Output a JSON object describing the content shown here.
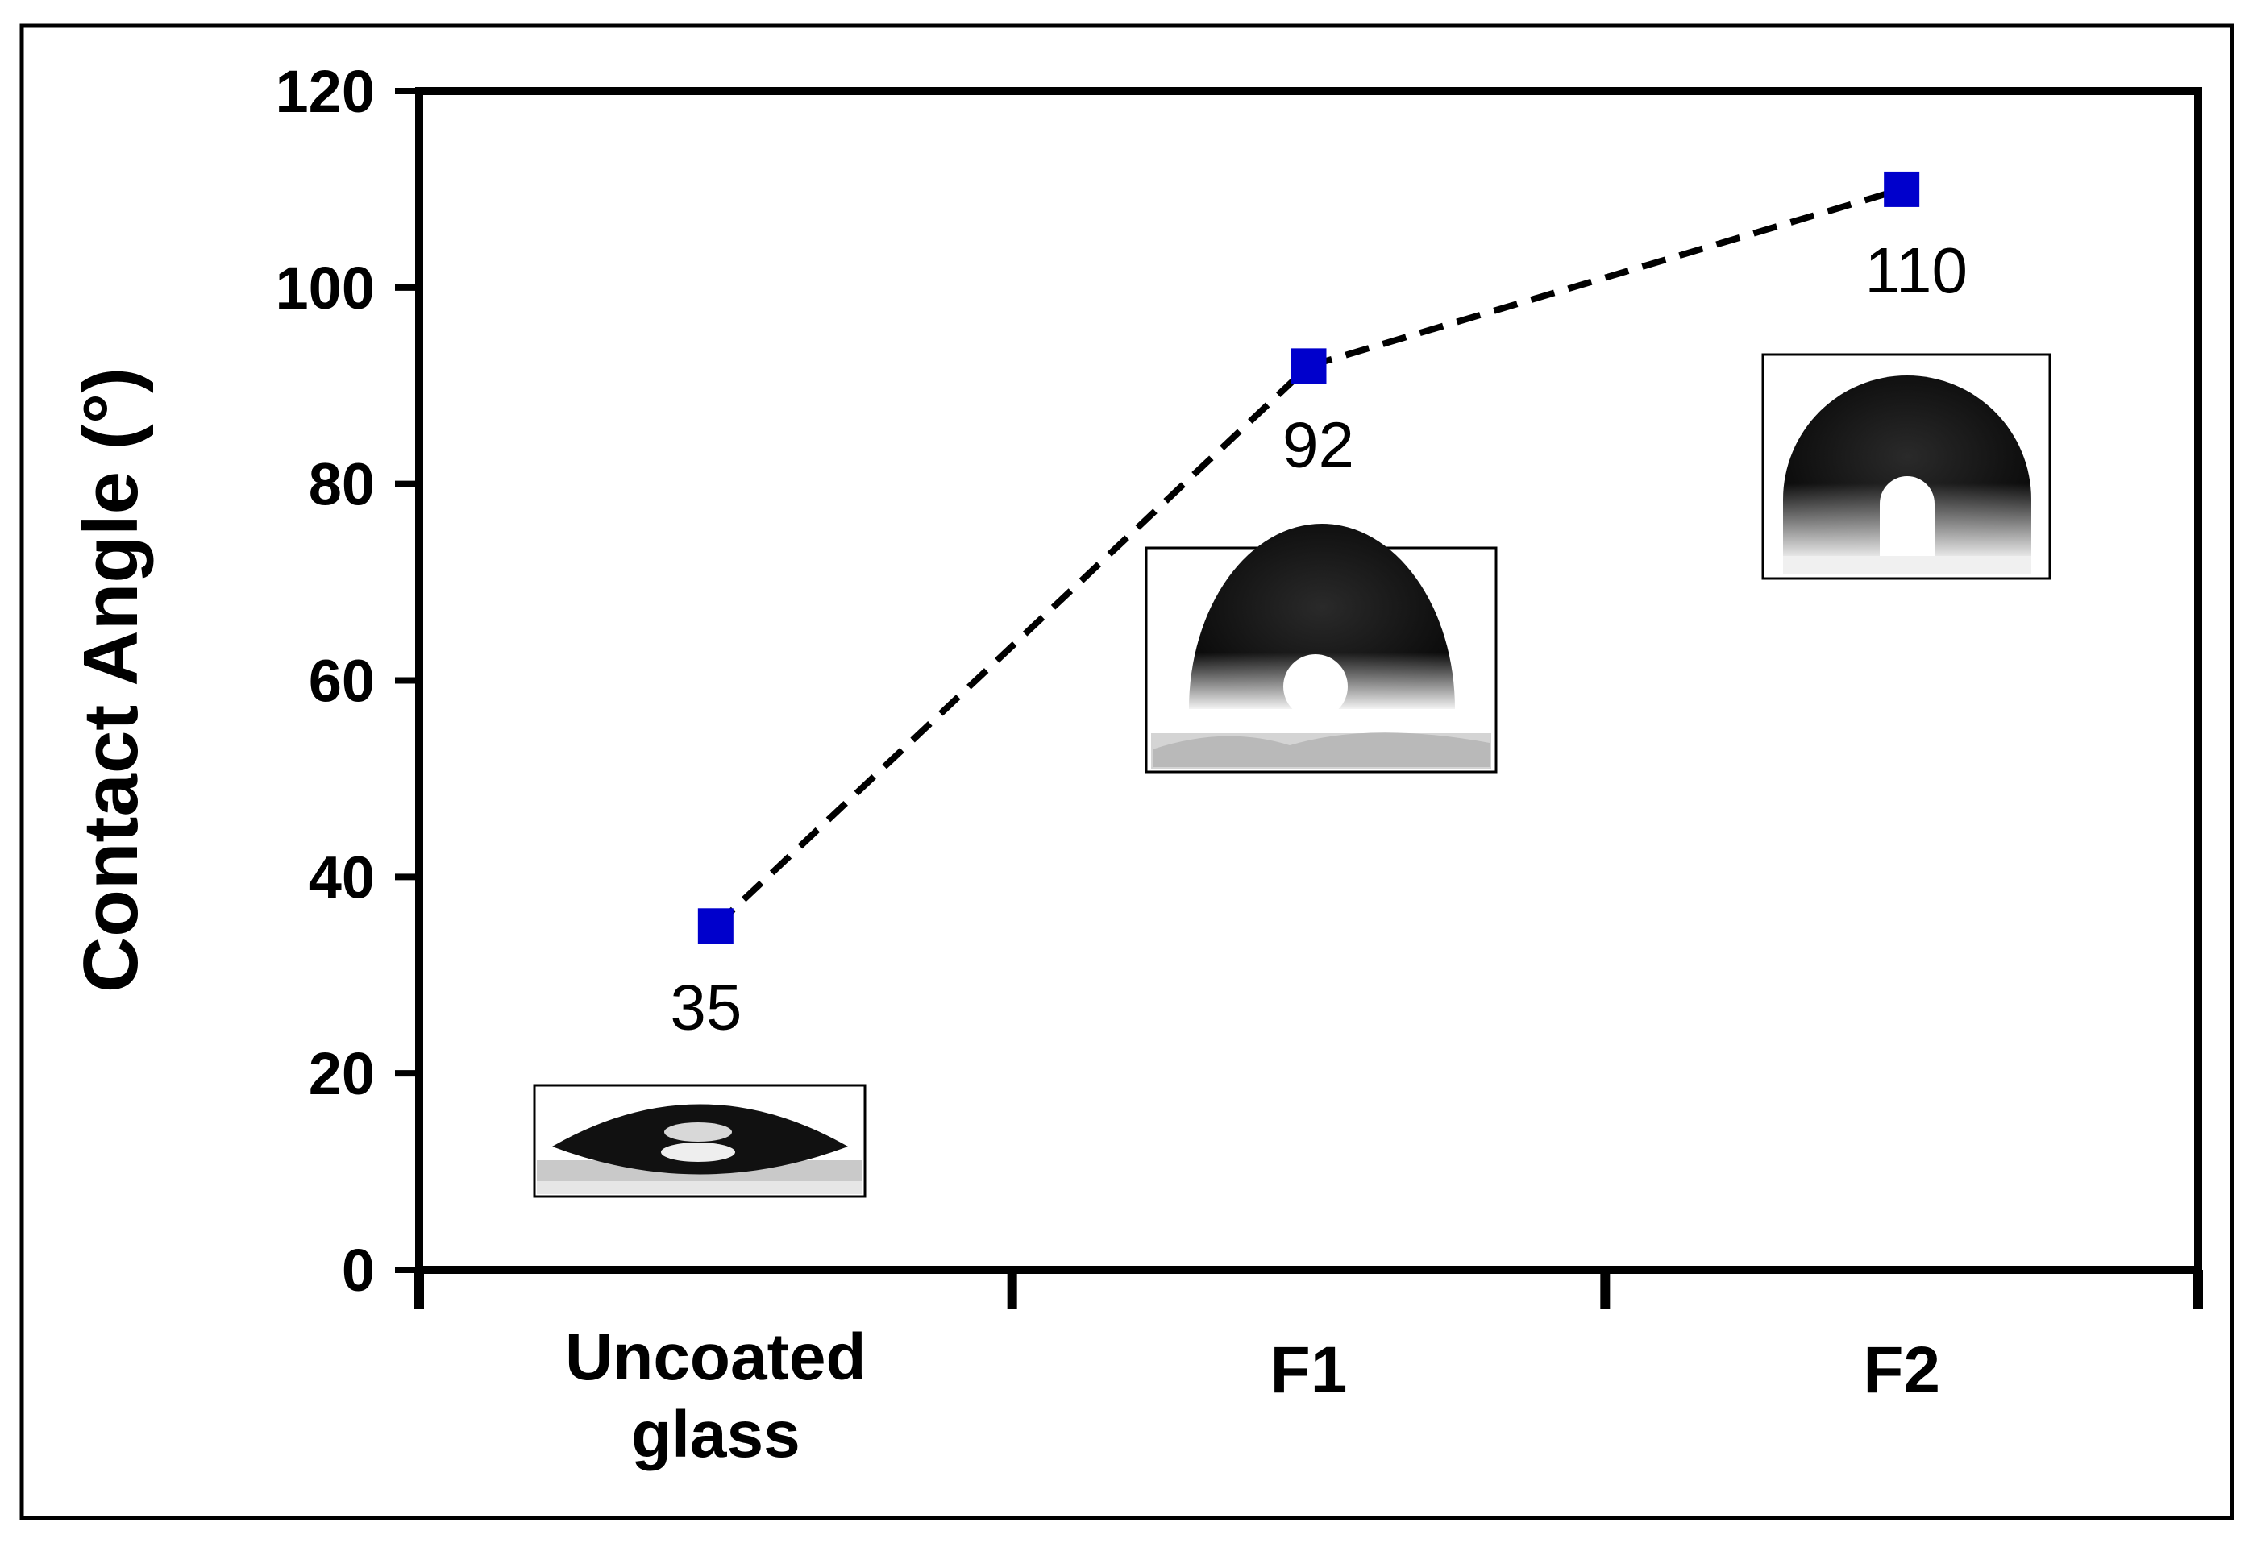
{
  "chart_data": {
    "type": "line",
    "categories": [
      "Uncoated glass",
      "F1",
      "F2"
    ],
    "category_lines": [
      [
        "Uncoated",
        "glass"
      ],
      [
        "F1"
      ],
      [
        "F2"
      ]
    ],
    "series": [
      {
        "values": [
          35,
          92,
          110
        ],
        "color": "#0000cc",
        "line_style": "dashed",
        "line_color": "#000000",
        "marker": "square"
      }
    ],
    "data_labels": [
      "35",
      "92",
      "110"
    ],
    "ylabel": "Contact Angle (°)",
    "xlabel": "",
    "ylim": [
      0,
      120
    ],
    "yticks": [
      0,
      20,
      40,
      60,
      80,
      100,
      120
    ],
    "grid": false,
    "insets": [
      {
        "category": "Uncoated glass",
        "description": "flat droplet image"
      },
      {
        "category": "F1",
        "description": "droplet image"
      },
      {
        "category": "F2",
        "description": "spherical droplet image"
      }
    ]
  }
}
